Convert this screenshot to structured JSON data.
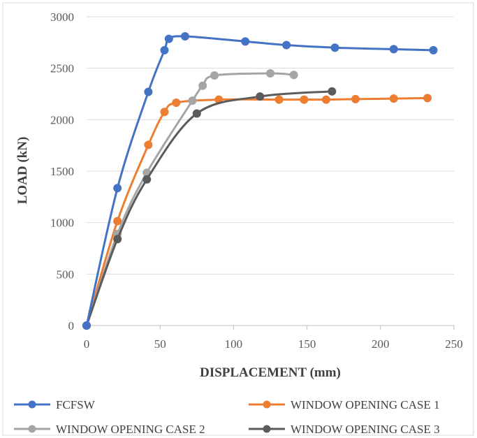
{
  "chart_data": {
    "type": "line",
    "title": "",
    "xlabel": "DISPLACEMENT (mm)",
    "ylabel": "LOAD (kN)",
    "xlim": [
      0,
      250
    ],
    "ylim": [
      0,
      3000
    ],
    "xticks": [
      0,
      50,
      100,
      150,
      200,
      250
    ],
    "yticks": [
      0,
      500,
      1000,
      1500,
      2000,
      2500,
      3000
    ],
    "grid": "horizontal",
    "legend_position": "bottom",
    "series": [
      {
        "name": "FCFSW",
        "color": "#4472C4",
        "points": [
          [
            0,
            0
          ],
          [
            21,
            1335
          ],
          [
            42,
            2270
          ],
          [
            53,
            2675
          ],
          [
            56,
            2785
          ],
          [
            67,
            2810
          ],
          [
            108,
            2760
          ],
          [
            136,
            2725
          ],
          [
            169,
            2700
          ],
          [
            209,
            2685
          ],
          [
            236,
            2675
          ]
        ]
      },
      {
        "name": "WINDOW OPENING CASE 1",
        "color": "#ED7D31",
        "points": [
          [
            0,
            0
          ],
          [
            21,
            1015
          ],
          [
            42,
            1755
          ],
          [
            53,
            2075
          ],
          [
            61,
            2165
          ],
          [
            90,
            2195
          ],
          [
            131,
            2195
          ],
          [
            148,
            2195
          ],
          [
            163,
            2195
          ],
          [
            183,
            2200
          ],
          [
            209,
            2205
          ],
          [
            232,
            2210
          ]
        ]
      },
      {
        "name": "WINDOW OPENING CASE 2",
        "color": "#A5A5A5",
        "points": [
          [
            0,
            0
          ],
          [
            21,
            890
          ],
          [
            41,
            1485
          ],
          [
            72,
            2185
          ],
          [
            79,
            2330
          ],
          [
            87,
            2430
          ],
          [
            125,
            2450
          ],
          [
            141,
            2435
          ]
        ]
      },
      {
        "name": "WINDOW OPENING CASE 3",
        "color": "#5B5B5B",
        "points": [
          [
            0,
            0
          ],
          [
            21,
            840
          ],
          [
            41,
            1420
          ],
          [
            75,
            2060
          ],
          [
            118,
            2225
          ],
          [
            167,
            2275
          ]
        ]
      }
    ]
  }
}
